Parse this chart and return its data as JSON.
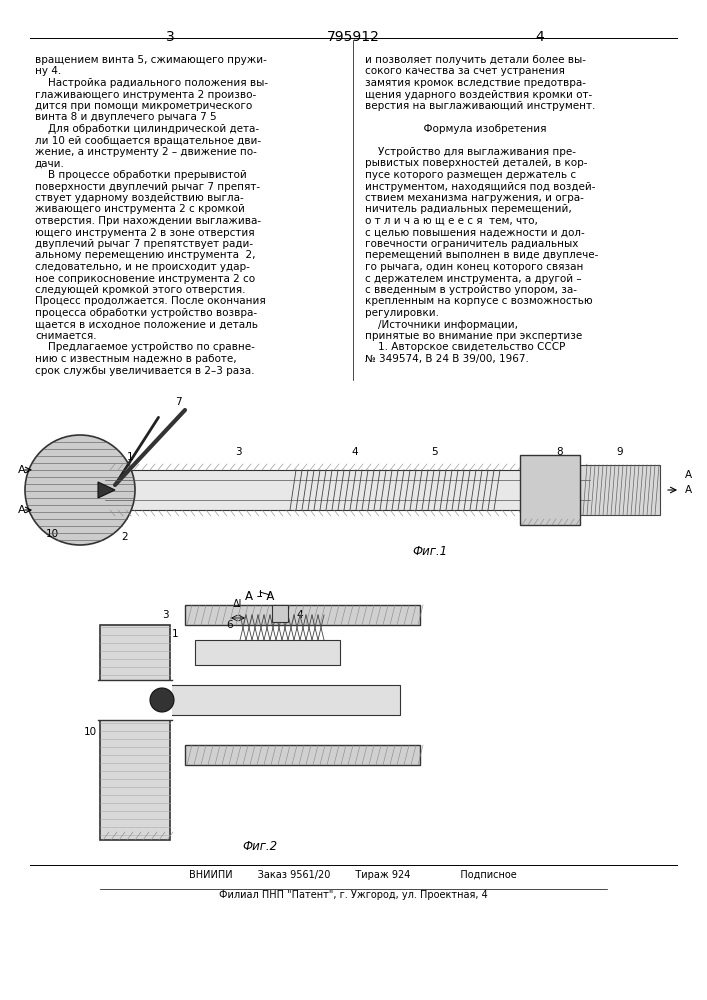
{
  "page_number_left": "3",
  "patent_number": "795912",
  "page_number_right": "4",
  "col1_text": [
    "вращением винта 5, сжимающего пружи-",
    "ну 4.",
    "    Настройка радиального положения вы-",
    "глаживающего инструмента 2 произво-",
    "дится при помощи микрометрического",
    "винта 8 и двуплечего рычага 7 5",
    "    Для обработки цилиндрической дета-",
    "ли 10 ей сообщается вращательное дви-",
    "жение, а инструменту 2 – движение по-",
    "дачи.",
    "    В процессе обработки прерывистой",
    "поверхности двуплечий рычаг 7 препят-",
    "ствует ударному воздействию выгла-",
    "живающего инструмента 2 с кромкой",
    "отверстия. При нахождении выглажива-",
    "ющего инструмента 2 в зоне отверстия",
    "двуплечий рычаг 7 препятствует ради-",
    "альному перемещению инструмента  2,",
    "следовательно, и не происходит удар-",
    "ное соприкосновение инструмента 2 со",
    "следующей кромкой этого отверстия.",
    "Процесс продолжается. После окончания",
    "процесса обработки устройство возвра-",
    "щается в исходное положение и деталь",
    "снимается.",
    "    Предлагаемое устройство по сравне-",
    "нию с известным надежно в работе,",
    "срок службы увеличивается в 2–3 раза."
  ],
  "col2_text": [
    "и позволяет получить детали более вы-",
    "сокого качества за счет устранения",
    "замятия кромок вследствие предотвра-",
    "щения ударного воздействия кромки от-",
    "верстия на выглаживающий инструмент.",
    "",
    "                  Формула изобретения",
    "",
    "    Устройство для выглаживания пре-",
    "рывистых поверхностей деталей, в кор-",
    "пусе которого размещен держатель с",
    "инструментом, находящийся под воздей-",
    "ствием механизма нагружения, и огра-",
    "ничитель радиальных перемещений,",
    "о т л и ч а ю щ е е с я  тем, что,",
    "с целью повышения надежности и дол-",
    "говечности ограничитель радиальных",
    "перемещений выполнен в виде двуплече-",
    "го рычага, один конец которого связан",
    "с держателем инструмента, а другой –",
    "с введенным в устройство упором, за-",
    "крепленным на корпусе с возможностью",
    "регулировки.",
    "    /Источники информации,",
    "принятые во внимание при экспертизе",
    "    1. Авторское свидетельство СССР",
    "№ 349574, В 24 В 39/00, 1967."
  ],
  "fig1_caption": "Фиг.1",
  "fig2_caption": "Фиг.2",
  "section_label": "А–А",
  "footer_line1": "ВНИИПИ        Заказ 9561/20        Тираж 924                Подписное",
  "footer_line2": "Филиал ПНП \"Патент\", г. Ужгород, ул. Проектная, 4",
  "bg_color": "#ffffff",
  "text_color": "#000000",
  "font_size_body": 7.5,
  "font_size_footer": 7.0,
  "font_size_header": 10
}
